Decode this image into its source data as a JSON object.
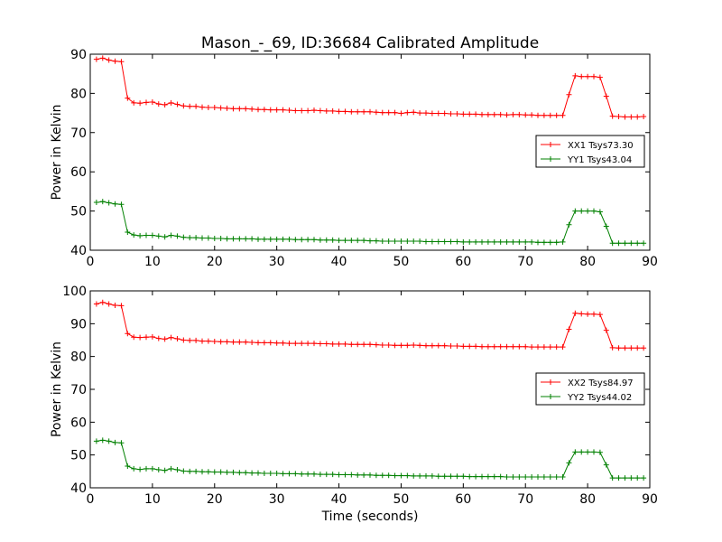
{
  "figure": {
    "title": "Mason_-_69, ID:36684 Calibrated Amplitude",
    "xlabel": "Time (seconds)"
  },
  "chart_data": [
    {
      "type": "line",
      "ylabel": "Power in Kelvin",
      "xlim": [
        0,
        90
      ],
      "ylim": [
        40,
        90
      ],
      "xticks": [
        0,
        10,
        20,
        30,
        40,
        50,
        60,
        70,
        80,
        90
      ],
      "yticks": [
        40,
        50,
        60,
        70,
        80,
        90
      ],
      "legend_position": "center-right",
      "x": [
        1,
        2,
        3,
        4,
        5,
        6,
        7,
        8,
        9,
        10,
        11,
        12,
        13,
        14,
        15,
        16,
        17,
        18,
        19,
        20,
        21,
        22,
        23,
        24,
        25,
        26,
        27,
        28,
        29,
        30,
        31,
        32,
        33,
        34,
        35,
        36,
        37,
        38,
        39,
        40,
        41,
        42,
        43,
        44,
        45,
        46,
        47,
        48,
        49,
        50,
        51,
        52,
        53,
        54,
        55,
        56,
        57,
        58,
        59,
        60,
        61,
        62,
        63,
        64,
        65,
        66,
        67,
        68,
        69,
        70,
        71,
        72,
        73,
        74,
        75,
        76,
        77,
        78,
        79,
        80,
        81,
        82,
        83,
        84,
        85,
        86,
        87,
        88,
        89
      ],
      "series": [
        {
          "name": "XX1 Tsys73.30",
          "color": "#ff0000",
          "values": [
            88.7,
            89.0,
            88.5,
            88.2,
            88.1,
            78.8,
            77.6,
            77.5,
            77.7,
            77.8,
            77.3,
            77.1,
            77.6,
            77.2,
            76.8,
            76.7,
            76.7,
            76.5,
            76.4,
            76.4,
            76.3,
            76.2,
            76.1,
            76.1,
            76.1,
            76.0,
            75.9,
            75.9,
            75.8,
            75.8,
            75.8,
            75.7,
            75.6,
            75.6,
            75.6,
            75.7,
            75.6,
            75.5,
            75.5,
            75.4,
            75.4,
            75.3,
            75.3,
            75.3,
            75.3,
            75.2,
            75.1,
            75.1,
            75.1,
            74.9,
            75.1,
            75.2,
            75.0,
            75.0,
            74.9,
            74.9,
            74.9,
            74.8,
            74.8,
            74.7,
            74.7,
            74.7,
            74.6,
            74.6,
            74.6,
            74.6,
            74.5,
            74.6,
            74.6,
            74.5,
            74.5,
            74.4,
            74.4,
            74.4,
            74.4,
            74.4,
            79.7,
            84.5,
            84.3,
            84.3,
            84.3,
            84.1,
            79.3,
            74.2,
            74.1,
            74.0,
            74.0,
            74.0,
            74.1
          ]
        },
        {
          "name": "YY1 Tsys43.04",
          "color": "#008000",
          "values": [
            52.2,
            52.4,
            52.1,
            51.8,
            51.7,
            44.6,
            43.9,
            43.7,
            43.8,
            43.8,
            43.6,
            43.4,
            43.8,
            43.6,
            43.3,
            43.2,
            43.2,
            43.1,
            43.1,
            43.0,
            43.0,
            42.9,
            42.9,
            42.9,
            42.9,
            42.9,
            42.8,
            42.8,
            42.8,
            42.8,
            42.8,
            42.8,
            42.7,
            42.7,
            42.7,
            42.7,
            42.6,
            42.6,
            42.6,
            42.5,
            42.5,
            42.5,
            42.5,
            42.5,
            42.4,
            42.4,
            42.3,
            42.3,
            42.3,
            42.3,
            42.3,
            42.3,
            42.3,
            42.2,
            42.2,
            42.2,
            42.2,
            42.2,
            42.2,
            42.1,
            42.1,
            42.1,
            42.1,
            42.1,
            42.1,
            42.1,
            42.1,
            42.1,
            42.1,
            42.1,
            42.1,
            42.0,
            42.0,
            42.0,
            42.0,
            42.1,
            46.5,
            50.0,
            50.0,
            50.0,
            50.0,
            49.8,
            46.1,
            41.8,
            41.8,
            41.8,
            41.8,
            41.8,
            41.8
          ]
        }
      ]
    },
    {
      "type": "line",
      "ylabel": "Power in Kelvin",
      "xlabel": "Time (seconds)",
      "xlim": [
        0,
        90
      ],
      "ylim": [
        40,
        100
      ],
      "xticks": [
        0,
        10,
        20,
        30,
        40,
        50,
        60,
        70,
        80,
        90
      ],
      "yticks": [
        40,
        50,
        60,
        70,
        80,
        90,
        100
      ],
      "legend_position": "center-right",
      "x": [
        1,
        2,
        3,
        4,
        5,
        6,
        7,
        8,
        9,
        10,
        11,
        12,
        13,
        14,
        15,
        16,
        17,
        18,
        19,
        20,
        21,
        22,
        23,
        24,
        25,
        26,
        27,
        28,
        29,
        30,
        31,
        32,
        33,
        34,
        35,
        36,
        37,
        38,
        39,
        40,
        41,
        42,
        43,
        44,
        45,
        46,
        47,
        48,
        49,
        50,
        51,
        52,
        53,
        54,
        55,
        56,
        57,
        58,
        59,
        60,
        61,
        62,
        63,
        64,
        65,
        66,
        67,
        68,
        69,
        70,
        71,
        72,
        73,
        74,
        75,
        76,
        77,
        78,
        79,
        80,
        81,
        82,
        83,
        84,
        85,
        86,
        87,
        88,
        89
      ],
      "series": [
        {
          "name": "XX2 Tsys84.97",
          "color": "#ff0000",
          "values": [
            96.0,
            96.5,
            96.0,
            95.6,
            95.5,
            87.0,
            85.9,
            85.8,
            85.9,
            86.0,
            85.5,
            85.3,
            85.8,
            85.4,
            85.0,
            84.9,
            84.9,
            84.7,
            84.7,
            84.6,
            84.5,
            84.5,
            84.4,
            84.4,
            84.4,
            84.3,
            84.2,
            84.2,
            84.2,
            84.1,
            84.1,
            84.0,
            84.0,
            84.0,
            84.0,
            84.0,
            83.9,
            83.9,
            83.8,
            83.8,
            83.8,
            83.7,
            83.7,
            83.7,
            83.7,
            83.6,
            83.5,
            83.5,
            83.4,
            83.4,
            83.4,
            83.5,
            83.4,
            83.3,
            83.3,
            83.3,
            83.3,
            83.2,
            83.2,
            83.1,
            83.1,
            83.1,
            83.0,
            83.0,
            83.0,
            83.0,
            83.0,
            83.0,
            83.0,
            83.0,
            82.9,
            82.9,
            82.9,
            82.9,
            82.9,
            82.9,
            88.3,
            93.2,
            93.0,
            92.9,
            92.9,
            92.8,
            88.0,
            82.7,
            82.6,
            82.6,
            82.6,
            82.6,
            82.6
          ]
        },
        {
          "name": "YY2 Tsys44.02",
          "color": "#008000",
          "values": [
            54.2,
            54.5,
            54.2,
            53.8,
            53.7,
            46.6,
            45.8,
            45.6,
            45.8,
            45.8,
            45.5,
            45.3,
            45.8,
            45.5,
            45.1,
            45.0,
            45.0,
            44.9,
            44.9,
            44.8,
            44.8,
            44.7,
            44.7,
            44.6,
            44.6,
            44.5,
            44.5,
            44.4,
            44.4,
            44.4,
            44.3,
            44.3,
            44.3,
            44.2,
            44.2,
            44.2,
            44.1,
            44.1,
            44.1,
            44.0,
            44.0,
            44.0,
            43.9,
            43.9,
            43.9,
            43.8,
            43.8,
            43.8,
            43.7,
            43.7,
            43.7,
            43.6,
            43.6,
            43.6,
            43.6,
            43.5,
            43.5,
            43.5,
            43.5,
            43.5,
            43.4,
            43.4,
            43.4,
            43.4,
            43.4,
            43.4,
            43.3,
            43.3,
            43.3,
            43.3,
            43.3,
            43.3,
            43.3,
            43.3,
            43.3,
            43.3,
            47.6,
            50.9,
            50.9,
            50.9,
            50.9,
            50.8,
            47.0,
            43.0,
            43.0,
            43.0,
            43.0,
            43.0,
            43.0
          ]
        }
      ]
    }
  ]
}
